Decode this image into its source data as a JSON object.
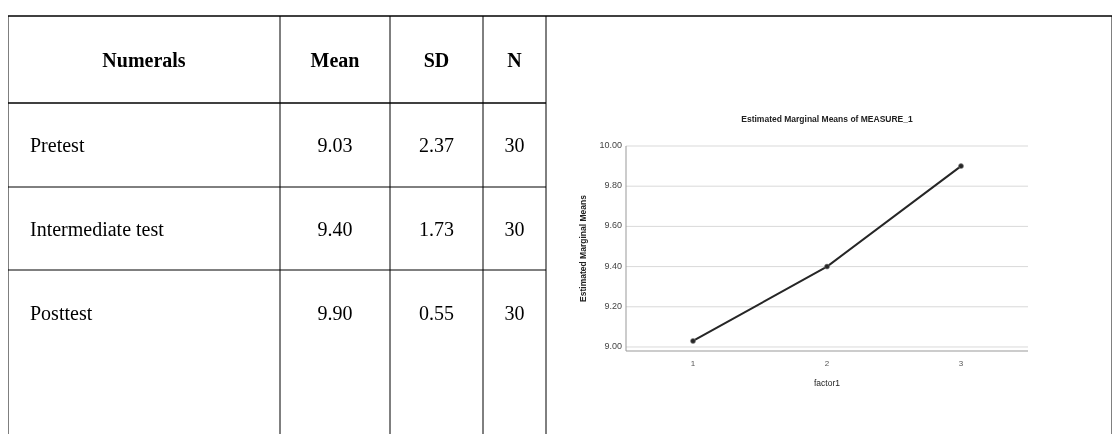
{
  "chart_data": [
    {
      "type": "other",
      "title": "Numerals",
      "categories": [
        "Pretest",
        "Intermediate test",
        "Posttest"
      ],
      "series": [
        {
          "name": "Mean",
          "values": [
            9.03,
            9.4,
            9.9
          ],
          "value_labels": [
            "9.03",
            "9.40",
            "9.90"
          ]
        },
        {
          "name": "SD",
          "values": [
            2.37,
            1.73,
            0.55
          ],
          "value_labels": [
            "2.37",
            "1.73",
            "0.55"
          ]
        },
        {
          "name": "N",
          "values": [
            30,
            30,
            30
          ],
          "value_labels": [
            "30",
            "30",
            "30"
          ]
        }
      ]
    },
    {
      "type": "line",
      "title": "Estimated Marginal Means of MEASURE_1",
      "xlabel": "factor1",
      "ylabel": "Estimated Marginal Means",
      "categories": [
        "1",
        "2",
        "3"
      ],
      "series": [
        {
          "color": "#262626",
          "values": [
            9.03,
            9.4,
            9.9
          ]
        }
      ],
      "ylim": [
        8.98,
        10.0
      ],
      "yticks": [
        {
          "value": 9,
          "label": "9.00"
        },
        {
          "value": 9.2,
          "label": "9.20"
        },
        {
          "value": 9.4,
          "label": "9.40"
        },
        {
          "value": 9.6,
          "label": "9.60"
        },
        {
          "value": 9.8,
          "label": "9.80"
        },
        {
          "value": 10,
          "label": "10.00"
        }
      ],
      "grid": "y",
      "marker": "circle",
      "line_style": "solid"
    }
  ]
}
